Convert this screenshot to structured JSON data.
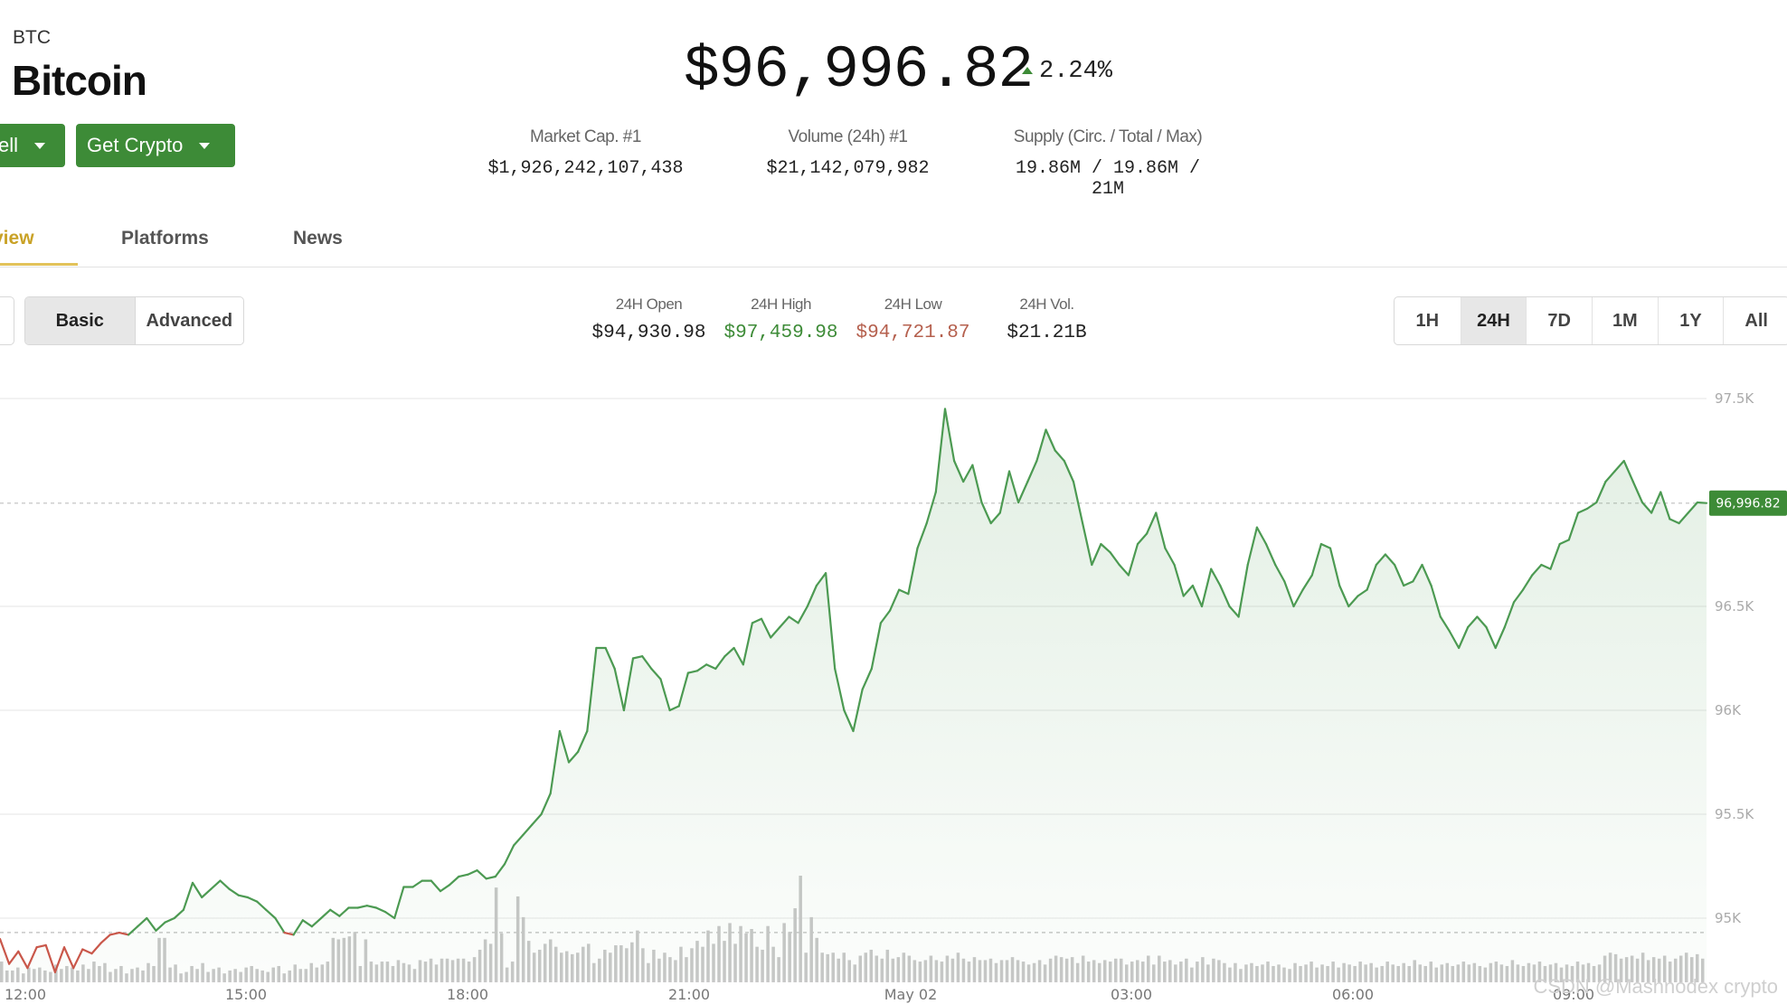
{
  "header": {
    "ticker": "BTC",
    "name": "Bitcoin",
    "price": "$96,996.82",
    "change": "2.24%"
  },
  "actions": {
    "sell_label": "ell",
    "get_crypto_label": "Get Crypto"
  },
  "stats": [
    {
      "label": "Market Cap. #1",
      "value": "$1,926,242,107,438"
    },
    {
      "label": "Volume (24h) #1",
      "value": "$21,142,079,982"
    },
    {
      "label": "Supply (Circ. / Total / Max)",
      "value": "19.86M / 19.86M / 21M"
    }
  ],
  "tabs": [
    {
      "label": "view",
      "active": true
    },
    {
      "label": "Platforms"
    },
    {
      "label": "News"
    }
  ],
  "chart_mode": {
    "options": [
      "Basic",
      "Advanced"
    ],
    "selected": "Basic"
  },
  "ohlc": [
    {
      "label": "24H Open",
      "value": "$94,930.98",
      "color": "#222222"
    },
    {
      "label": "24H High",
      "value": "$97,459.98",
      "color": "#3d8b37"
    },
    {
      "label": "24H Low",
      "value": "$94,721.87",
      "color": "#b5604e"
    }
  ],
  "volume_stat": {
    "label": "24H Vol.",
    "value": "$21.21B"
  },
  "ranges": {
    "options": [
      "1H",
      "24H",
      "7D",
      "1M",
      "1Y",
      "All"
    ],
    "selected": "24H"
  },
  "colors": {
    "accent_green": "#3d8b37",
    "line_green": "#4c9a52",
    "line_red": "#c9574a",
    "tab_active": "#c9a227",
    "volume_bar": "#c8c8c8"
  },
  "watermark": "CSDN @Mashnodex crypto",
  "chart_data": {
    "type": "line",
    "ylim": [
      94700,
      97600
    ],
    "y_ticks": [
      "97.5K",
      "96.5K",
      "96K",
      "95.5K",
      "95K"
    ],
    "y_tick_values": [
      97500,
      96500,
      96000,
      95500,
      95000
    ],
    "x_ticks": [
      "12:00",
      "15:00",
      "18:00",
      "21:00",
      "May 02",
      "03:00",
      "06:00",
      "09:00"
    ],
    "open_reference": 94930.98,
    "current_price_label": "96,996.82",
    "current_price": 96996.82,
    "series": [
      {
        "values": [
          94900,
          94780,
          94840,
          94760,
          94860,
          94870,
          94740,
          94860,
          94760,
          94850,
          94830,
          94880,
          94920,
          94930,
          94920,
          94960,
          95000,
          94940,
          94980,
          95000,
          95040,
          95170,
          95100,
          95140,
          95180,
          95140,
          95110,
          95100,
          95080,
          95040,
          95000,
          94930,
          94920,
          94990,
          94960,
          95000,
          95040,
          95010,
          95050,
          95050,
          95060,
          95050,
          95030,
          95000,
          95150,
          95150,
          95180,
          95180,
          95130,
          95160,
          95200,
          95210,
          95230,
          95190,
          95200,
          95260,
          95350,
          95400,
          95450,
          95500,
          95600,
          95900,
          95750,
          95800,
          95900,
          96300,
          96300,
          96200,
          96000,
          96250,
          96260,
          96200,
          96150,
          96000,
          96020,
          96180,
          96190,
          96220,
          96200,
          96260,
          96300,
          96220,
          96420,
          96440,
          96350,
          96400,
          96450,
          96420,
          96500,
          96600,
          96660,
          96200,
          96000,
          95900,
          96100,
          96200,
          96420,
          96480,
          96580,
          96560,
          96780,
          96900,
          97050,
          97450,
          97200,
          97100,
          97180,
          97000,
          96900,
          96950,
          97150,
          97000,
          97100,
          97200,
          97350,
          97250,
          97200,
          97100,
          96900,
          96700,
          96800,
          96760,
          96700,
          96650,
          96800,
          96850,
          96950,
          96780,
          96700,
          96550,
          96600,
          96500,
          96680,
          96600,
          96500,
          96450,
          96700,
          96880,
          96800,
          96700,
          96620,
          96500,
          96580,
          96650,
          96800,
          96780,
          96600,
          96500,
          96550,
          96580,
          96700,
          96750,
          96700,
          96600,
          96620,
          96700,
          96600,
          96450,
          96380,
          96300,
          96400,
          96450,
          96400,
          96300,
          96400,
          96520,
          96580,
          96650,
          96700,
          96680,
          96800,
          96820,
          96950,
          96970,
          97000,
          97100,
          97150,
          97200,
          97100,
          97000,
          96950,
          97050,
          96920,
          96900,
          96950,
          97000,
          96996.82
        ],
        "color": "#4c9a52"
      }
    ],
    "volume": [
      14,
      8,
      8,
      10,
      6,
      10,
      9,
      10,
      8,
      7,
      12,
      9,
      11,
      10,
      8,
      12,
      9,
      14,
      11,
      13,
      7,
      9,
      11,
      6,
      9,
      10,
      8,
      13,
      11,
      30,
      30,
      10,
      12,
      6,
      7,
      11,
      9,
      13,
      7,
      9,
      10,
      6,
      8,
      9,
      7,
      10,
      11,
      9,
      8,
      7,
      10,
      11,
      6,
      8,
      12,
      9,
      9,
      13,
      10,
      12,
      14,
      30,
      29,
      30,
      31,
      34,
      11,
      29,
      14,
      12,
      14,
      14,
      11,
      15,
      13,
      12,
      9,
      15,
      14,
      16,
      12,
      16,
      16,
      15,
      16,
      16,
      14,
      17,
      22,
      29,
      26,
      64,
      33,
      10,
      14,
      58,
      44,
      28,
      20,
      22,
      26,
      29,
      24,
      20,
      21,
      19,
      20,
      24,
      26,
      13,
      16,
      22,
      20,
      25,
      25,
      23,
      27,
      35,
      23,
      13,
      22,
      16,
      20,
      17,
      15,
      24,
      17,
      23,
      28,
      24,
      35,
      26,
      38,
      28,
      40,
      26,
      38,
      33,
      36,
      24,
      22,
      38,
      24,
      17,
      40,
      34,
      50,
      72,
      20,
      44,
      30,
      20,
      19,
      20,
      16,
      20,
      15,
      12,
      18,
      20,
      22,
      18,
      16,
      22,
      16,
      17,
      20,
      18,
      15,
      14,
      15,
      18,
      15,
      14,
      18,
      16,
      20,
      16,
      14,
      17,
      15,
      15,
      16,
      13,
      15,
      15,
      17,
      15,
      14,
      12,
      13,
      15,
      12,
      16,
      18,
      17,
      16,
      17,
      13,
      18,
      14,
      15,
      13,
      15,
      14,
      16,
      16,
      12,
      14,
      15,
      14,
      18,
      12,
      18,
      14,
      15,
      12,
      14,
      16,
      10,
      14,
      17,
      12,
      16,
      15,
      13,
      10,
      13,
      9,
      12,
      13,
      11,
      12,
      14,
      11,
      12,
      10,
      9,
      13,
      11,
      12,
      14,
      10,
      12,
      11,
      14,
      10,
      13,
      12,
      11,
      14,
      12,
      13,
      10,
      11,
      14,
      12,
      11,
      13,
      11,
      15,
      12,
      11,
      14,
      10,
      12,
      13,
      11,
      12,
      14,
      12,
      13,
      11,
      10,
      13,
      14,
      12,
      11,
      15,
      12,
      11,
      13,
      12,
      14,
      11,
      12,
      13,
      10,
      12,
      11,
      14,
      12,
      13,
      11,
      12,
      18,
      20,
      19,
      16,
      17,
      18,
      16,
      20,
      15,
      17,
      16,
      18,
      14,
      16,
      18,
      20,
      17,
      19,
      16
    ]
  }
}
